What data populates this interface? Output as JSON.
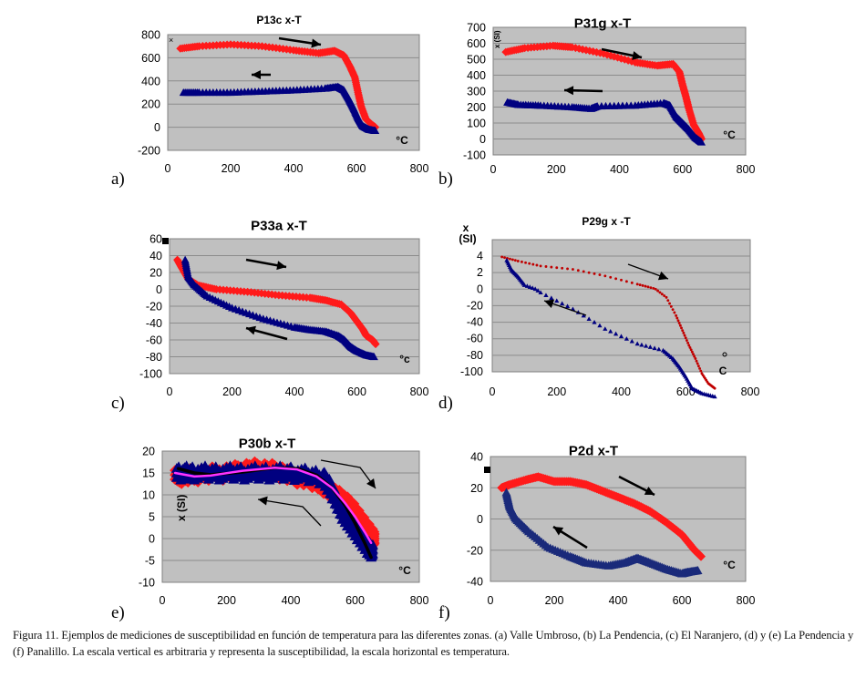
{
  "colors": {
    "heating": "#ff1a1a",
    "heating_dark": "#c00000",
    "cooling": "#000080",
    "cooling_alt": "#1a2a7a",
    "plot_bg": "#c0c0c0",
    "grid": "#8c8c8c",
    "fit_black": "#000000",
    "fit_magenta": "#ff33ff"
  },
  "caption": "Figura 11. Ejemplos de mediciones de susceptibilidad en función de temperatura para las diferentes zonas. (a) Valle Umbroso, (b) La Pendencia, (c) El Naranjero, (d) y (e) La Pendencia y (f) Panalillo. La escala vertical es arbitraria y representa la susceptibilidad, la escala horizontal es temperatura.",
  "chart_data": [
    {
      "id": "a",
      "panel_label": "a)",
      "type": "scatter",
      "title": "P13c  x-T",
      "xlabel": "°C",
      "ylabel": "",
      "xlim": [
        0,
        800
      ],
      "ylim": [
        -200,
        800
      ],
      "xticks": [
        0,
        200,
        400,
        600,
        800
      ],
      "yticks": [
        -200,
        0,
        200,
        400,
        600,
        800
      ],
      "grid": true,
      "series": [
        {
          "name": "heating",
          "marker": "diamond",
          "color": "#ff1a1a",
          "x": [
            40,
            100,
            200,
            300,
            400,
            480,
            530,
            560,
            580,
            595,
            605,
            615,
            630,
            650,
            660
          ],
          "y": [
            680,
            700,
            715,
            700,
            665,
            640,
            660,
            620,
            520,
            430,
            300,
            180,
            70,
            20,
            0
          ]
        },
        {
          "name": "cooling",
          "marker": "triangle",
          "color": "#000080",
          "x": [
            660,
            640,
            620,
            605,
            590,
            575,
            560,
            540,
            500,
            400,
            300,
            200,
            100,
            50
          ],
          "y": [
            -30,
            -20,
            10,
            80,
            170,
            250,
            320,
            350,
            335,
            320,
            310,
            300,
            300,
            300
          ]
        }
      ],
      "annotations": [
        {
          "type": "arrow",
          "direction": "right",
          "x0": 120,
          "y0": 760,
          "x1": 170,
          "y1": 720
        },
        {
          "type": "arrow",
          "direction": "left",
          "x0": 110,
          "y0": 440,
          "x1": 90,
          "y1": 440
        }
      ],
      "marker_label": "×"
    },
    {
      "id": "b",
      "panel_label": "b)",
      "type": "scatter",
      "title": "P31g   x-T",
      "xlabel": "°C",
      "ylabel": "x (SI)",
      "xlim": [
        0,
        800
      ],
      "ylim": [
        -100,
        700
      ],
      "xticks": [
        0,
        200,
        400,
        600,
        800
      ],
      "yticks": [
        -100,
        0,
        100,
        200,
        300,
        400,
        500,
        600,
        700
      ],
      "grid": true,
      "series": [
        {
          "name": "heating",
          "marker": "diamond",
          "color": "#ff1a1a",
          "x": [
            40,
            100,
            190,
            250,
            350,
            450,
            520,
            570,
            590,
            600,
            610,
            620,
            635,
            650,
            660
          ],
          "y": [
            545,
            570,
            585,
            575,
            535,
            480,
            460,
            470,
            420,
            340,
            270,
            190,
            90,
            40,
            0
          ]
        },
        {
          "name": "cooling",
          "marker": "triangle",
          "color": "#000080",
          "x": [
            660,
            640,
            620,
            600,
            580,
            560,
            540,
            450,
            330,
            310,
            250,
            150,
            80,
            45
          ],
          "y": [
            -20,
            10,
            60,
            100,
            140,
            210,
            225,
            210,
            205,
            190,
            200,
            210,
            215,
            230
          ]
        }
      ],
      "annotations": [
        {
          "type": "arrow",
          "direction": "right",
          "x0": 345,
          "y0": 575,
          "x1": 465,
          "y1": 525
        },
        {
          "type": "arrow",
          "direction": "left",
          "x0": 350,
          "y0": 300,
          "x1": 230,
          "y1": 305
        }
      ]
    },
    {
      "id": "c",
      "panel_label": "c)",
      "type": "scatter",
      "title": "P33a   x-T",
      "xlabel": "°c",
      "ylabel": "",
      "xlim": [
        0,
        800
      ],
      "ylim": [
        -100,
        60
      ],
      "xticks": [
        0,
        200,
        400,
        600,
        800
      ],
      "yticks": [
        -100,
        -80,
        -60,
        -40,
        -20,
        0,
        20,
        40,
        60
      ],
      "grid": true,
      "series": [
        {
          "name": "heating",
          "marker": "diamond",
          "color": "#ff1a1a",
          "x": [
            25,
            40,
            60,
            90,
            150,
            250,
            350,
            450,
            500,
            550,
            580,
            600,
            620,
            630,
            650,
            660
          ],
          "y": [
            35,
            25,
            12,
            5,
            0,
            -3,
            -7,
            -10,
            -13,
            -18,
            -28,
            -38,
            -48,
            -55,
            -60,
            -65
          ]
        },
        {
          "name": "cooling",
          "marker": "triangle",
          "color": "#000080",
          "x": [
            655,
            630,
            600,
            580,
            560,
            540,
            500,
            450,
            400,
            300,
            200,
            120,
            80,
            60,
            50
          ],
          "y": [
            -80,
            -78,
            -73,
            -68,
            -60,
            -55,
            -50,
            -48,
            -45,
            -35,
            -22,
            -8,
            5,
            15,
            35
          ]
        }
      ],
      "annotations": [
        {
          "type": "arrow",
          "direction": "right",
          "x0": 250,
          "y0": 30,
          "x1": 380,
          "y1": 25
        },
        {
          "type": "arrow",
          "direction": "left",
          "x0": 380,
          "y0": -62,
          "x1": 250,
          "y1": -48
        }
      ],
      "marker_label": "■"
    },
    {
      "id": "d",
      "panel_label": "d)",
      "type": "scatter",
      "title": "P29g  x -T",
      "xlabel": "C",
      "ylabel": "x (SI)",
      "xlim": [
        0,
        800
      ],
      "ylim": [
        -100,
        4
      ],
      "ytick_labels": [
        "4",
        "2",
        "0",
        "-20",
        "-40",
        "-60",
        "-80",
        "-100"
      ],
      "xticks": [
        0,
        200,
        400,
        600,
        800
      ],
      "grid": true,
      "note": "Y axis tick labels are non-uniform as printed (4, 2, 0, -20 ... -100) on evenly spaced gridlines",
      "series": [
        {
          "name": "heating",
          "marker": "circle",
          "color": "#c00000",
          "x": [
            30,
            80,
            150,
            250,
            350,
            450,
            500,
            540,
            570,
            590,
            610,
            630,
            650,
            670,
            690
          ],
          "y_gridpos": [
            3.9,
            3.4,
            2.8,
            2.4,
            1.6,
            0.6,
            0.1,
            -0.5,
            -1.6,
            -2.5,
            -3.4,
            -4.2,
            -5.1,
            -5.7,
            -6.0
          ]
        },
        {
          "name": "cooling",
          "marker": "triangle",
          "color": "#000080",
          "x": [
            690,
            650,
            620,
            600,
            580,
            560,
            530,
            450,
            350,
            250,
            150,
            100,
            80,
            60,
            45
          ],
          "y_gridpos": [
            -6.5,
            -6.3,
            -6.0,
            -5.3,
            -4.7,
            -4.2,
            -3.7,
            -3.3,
            -2.4,
            -1.2,
            -0.2,
            0.5,
            1.5,
            2.3,
            3.5
          ]
        }
      ],
      "annotations": [
        {
          "type": "arrow",
          "direction": "right"
        },
        {
          "type": "arrow",
          "direction": "left"
        }
      ],
      "marker_label": "°"
    },
    {
      "id": "e",
      "panel_label": "e)",
      "type": "scatter",
      "title": "P30b x-T",
      "xlabel": "°C",
      "ylabel": "x (SI)",
      "xlim": [
        0,
        800
      ],
      "ylim": [
        -10,
        20
      ],
      "xticks": [
        0,
        200,
        400,
        600,
        800
      ],
      "yticks": [
        -10,
        -5,
        0,
        5,
        10,
        15,
        20
      ],
      "grid": true,
      "series": [
        {
          "name": "heating",
          "marker": "diamond",
          "color": "#ff1a1a",
          "x": [
            40,
            100,
            200,
            280,
            350,
            420,
            480,
            520,
            560,
            590,
            610,
            630,
            650,
            660
          ],
          "y": [
            14,
            14.5,
            15,
            16,
            15.5,
            14,
            13,
            11,
            9,
            7,
            5,
            3,
            1,
            0
          ]
        },
        {
          "name": "cooling",
          "marker": "triangle",
          "color": "#000080",
          "x": [
            655,
            640,
            620,
            600,
            580,
            560,
            540,
            520,
            500,
            400,
            300,
            200,
            100,
            45
          ],
          "y": [
            -3,
            -2,
            0,
            2,
            4,
            6,
            9,
            12,
            14,
            15,
            15,
            15,
            15,
            15
          ]
        },
        {
          "name": "fit-black",
          "type": "line",
          "color": "#000000",
          "x": [
            50,
            100,
            150,
            250,
            350,
            420,
            480,
            530,
            570,
            600,
            630,
            650
          ],
          "y": [
            16,
            15,
            14.6,
            15.2,
            16.2,
            16,
            14.5,
            11.5,
            7.5,
            3.5,
            -1,
            -4.3
          ]
        },
        {
          "name": "fit-magenta",
          "type": "line",
          "color": "#ff33ff",
          "x": [
            40,
            100,
            150,
            250,
            350,
            420,
            480,
            530,
            570,
            600,
            630,
            650
          ],
          "y": [
            15,
            14.2,
            14.4,
            15.5,
            16.2,
            15.8,
            14.2,
            11.5,
            8,
            5,
            1.5,
            -1
          ]
        }
      ],
      "annotations": [
        {
          "type": "arrow",
          "direction": "right-down",
          "x0": 440,
          "y0": 18,
          "x1": 570,
          "y1": 14,
          "x2": 600,
          "y2": 12
        },
        {
          "type": "arrow",
          "direction": "left",
          "x0": 380,
          "y0": 3,
          "x1": 340,
          "y1": 7,
          "x2": 250,
          "y2": 8.5
        }
      ]
    },
    {
      "id": "f",
      "panel_label": "f)",
      "type": "scatter",
      "title": "P2d  x-T",
      "xlabel": "°C",
      "ylabel": "",
      "xlim": [
        0,
        800
      ],
      "ylim": [
        -40,
        40
      ],
      "xticks": [
        0,
        200,
        400,
        600,
        800
      ],
      "yticks": [
        -40,
        -20,
        0,
        20,
        40
      ],
      "grid": true,
      "series": [
        {
          "name": "heating",
          "marker": "diamond",
          "color": "#ff1a1a",
          "x": [
            35,
            60,
            110,
            150,
            200,
            250,
            300,
            350,
            400,
            450,
            500,
            550,
            600,
            640,
            660
          ],
          "y": [
            20,
            22,
            25,
            27,
            24,
            24,
            22,
            18,
            14,
            10,
            5,
            -2,
            -10,
            -20,
            -24
          ]
        },
        {
          "name": "cooling",
          "marker": "triangle",
          "color": "#1a2a7a",
          "x": [
            650,
            620,
            600,
            550,
            500,
            460,
            420,
            370,
            300,
            250,
            180,
            120,
            80,
            60,
            50
          ],
          "y": [
            -33,
            -34,
            -35,
            -32,
            -28,
            -25,
            -28,
            -30,
            -28,
            -24,
            -18,
            -8,
            0,
            8,
            17
          ]
        }
      ],
      "annotations": [
        {
          "type": "arrow",
          "direction": "right",
          "x0": 400,
          "y0": 29,
          "x1": 520,
          "y1": 16
        },
        {
          "type": "arrow",
          "direction": "left",
          "x0": 315,
          "y0": -19,
          "x1": 200,
          "y1": -5
        }
      ],
      "marker_label": "■"
    }
  ]
}
